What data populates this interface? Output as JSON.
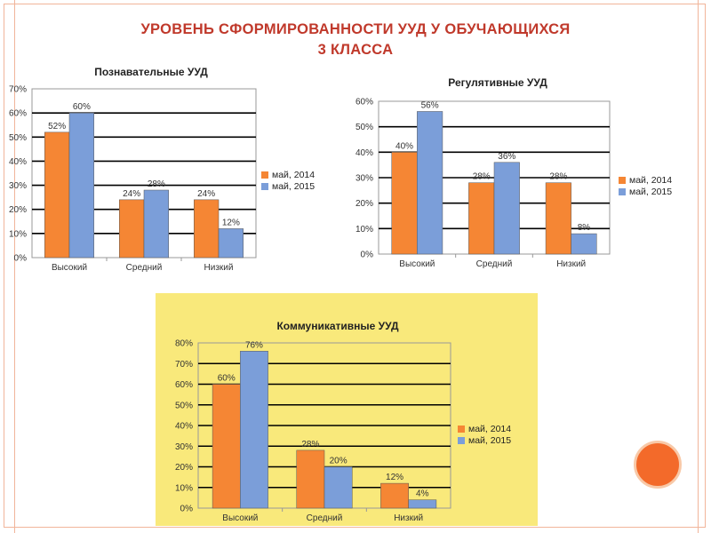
{
  "slide": {
    "title_line1": "УРОВЕНЬ СФОРМИРОВАННОСТИ  УУД  У ОБУЧАЮЩИХСЯ",
    "title_line2": "3  КЛАССА"
  },
  "colors": {
    "series_2014": "#f58634",
    "series_2015": "#7b9ed9",
    "title_red": "#c0392b",
    "panel_yellow": "#f9e97b",
    "decor_orange": "#f36a2a"
  },
  "chart_data": [
    {
      "id": "cognitive",
      "type": "bar",
      "title": "Познавательные УУД",
      "categories": [
        "Высокий",
        "Средний",
        "Низкий"
      ],
      "series": [
        {
          "name": "май, 2014",
          "values": [
            52,
            24,
            24
          ]
        },
        {
          "name": "май, 2015",
          "values": [
            60,
            28,
            12
          ]
        }
      ],
      "value_labels": [
        [
          "52%",
          "24%",
          "24%"
        ],
        [
          "60%",
          "28%",
          "12%"
        ]
      ],
      "ylim": [
        0,
        70
      ],
      "yticks": [
        "0%",
        "10%",
        "20%",
        "30%",
        "40%",
        "50%",
        "60%",
        "70%"
      ],
      "grid": true,
      "legend": "right"
    },
    {
      "id": "regulatory",
      "type": "bar",
      "title": "Регулятивные УУД",
      "categories": [
        "Высокий",
        "Средний",
        "Низкий"
      ],
      "series": [
        {
          "name": "май, 2014",
          "values": [
            40,
            28,
            28
          ]
        },
        {
          "name": "май, 2015",
          "values": [
            56,
            36,
            8
          ]
        }
      ],
      "value_labels": [
        [
          "40%",
          "28%",
          "28%"
        ],
        [
          "56%",
          "36%",
          "8%"
        ]
      ],
      "ylim": [
        0,
        60
      ],
      "yticks": [
        "0%",
        "10%",
        "20%",
        "30%",
        "40%",
        "50%",
        "60%"
      ],
      "grid": true,
      "legend": "right"
    },
    {
      "id": "communicative",
      "type": "bar",
      "title": "Коммуникативные УУД",
      "categories": [
        "Высокий",
        "Средний",
        "Низкий"
      ],
      "series": [
        {
          "name": "май, 2014",
          "values": [
            60,
            28,
            12
          ]
        },
        {
          "name": "май, 2015",
          "values": [
            76,
            20,
            4
          ]
        }
      ],
      "value_labels": [
        [
          "60%",
          "28%",
          "12%"
        ],
        [
          "76%",
          "20%",
          "4%"
        ]
      ],
      "ylim": [
        0,
        80
      ],
      "yticks": [
        "0%",
        "10%",
        "20%",
        "30%",
        "40%",
        "50%",
        "60%",
        "70%",
        "80%"
      ],
      "grid": true,
      "legend": "right"
    }
  ]
}
